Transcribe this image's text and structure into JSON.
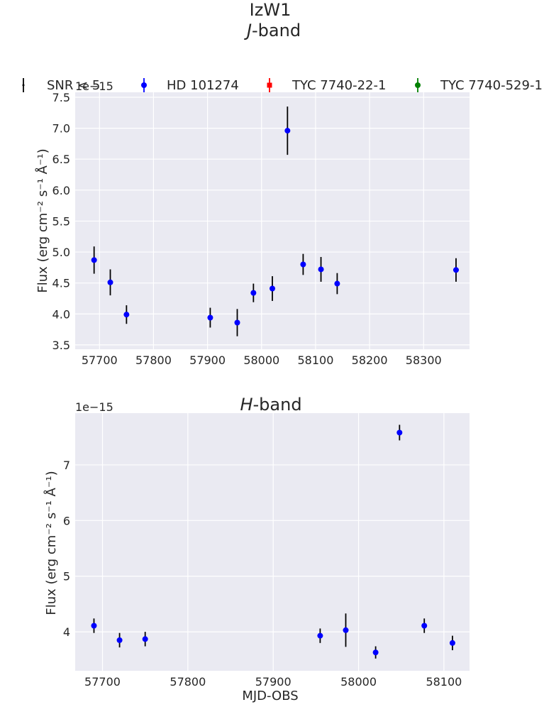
{
  "figure": {
    "suptitle_line1": "IzW1",
    "suptitle_line2_italic": "J",
    "suptitle_line2_rest": "-band",
    "legend": [
      {
        "label": "SNR < 5",
        "marker": "tick",
        "color": "#000000"
      },
      {
        "label": "HD 101274",
        "marker": "circle",
        "color": "#0000ff"
      },
      {
        "label": "TYC 7740-22-1",
        "marker": "square",
        "color": "#ff0000"
      },
      {
        "label": "TYC 7740-529-1",
        "marker": "circle",
        "color": "#008000"
      }
    ]
  },
  "chart_data": [
    {
      "type": "scatter",
      "title": "",
      "xlabel": "",
      "ylabel": "Flux (erg cm⁻² s⁻¹ Å⁻¹)",
      "offset_text": "1e−15",
      "xlim": [
        57655,
        58385
      ],
      "ylim": [
        3.43,
        7.58
      ],
      "xticks": [
        57700,
        57800,
        57900,
        58000,
        58100,
        58200,
        58300
      ],
      "yticks": [
        3.5,
        4.0,
        4.5,
        5.0,
        5.5,
        6.0,
        6.5,
        7.0,
        7.5
      ],
      "ytick_labels": [
        "3.5",
        "4.0",
        "4.5",
        "5.0",
        "5.5",
        "6.0",
        "6.5",
        "7.0",
        "7.5"
      ],
      "grid": true,
      "series": [
        {
          "name": "HD 101274",
          "color": "#0000ff",
          "x": [
            57690,
            57720,
            57750,
            57905,
            57955,
            57985,
            58020,
            58048,
            58077,
            58110,
            58140,
            58360
          ],
          "y": [
            4.87,
            4.51,
            3.99,
            3.94,
            3.86,
            4.34,
            4.41,
            6.96,
            4.8,
            4.72,
            4.49,
            4.71
          ],
          "yerr": [
            0.22,
            0.21,
            0.15,
            0.16,
            0.22,
            0.15,
            0.2,
            0.39,
            0.17,
            0.2,
            0.17,
            0.19
          ]
        }
      ]
    },
    {
      "type": "scatter",
      "title_italic": "H",
      "title_rest": "-band",
      "xlabel": "MJD-OBS",
      "ylabel": "Flux (erg cm⁻² s⁻¹ Å⁻¹)",
      "offset_text": "1e−15",
      "xlim": [
        57668,
        58130
      ],
      "ylim": [
        3.3,
        7.93
      ],
      "xticks": [
        57700,
        57800,
        57900,
        58000,
        58100
      ],
      "yticks": [
        4,
        5,
        6,
        7
      ],
      "ytick_labels": [
        "4",
        "5",
        "6",
        "7"
      ],
      "grid": true,
      "series": [
        {
          "name": "HD 101274",
          "color": "#0000ff",
          "x": [
            57690,
            57720,
            57750,
            57955,
            57985,
            58020,
            58048,
            58077,
            58110
          ],
          "y": [
            4.11,
            3.85,
            3.87,
            3.93,
            4.03,
            3.63,
            7.58,
            4.11,
            3.8
          ],
          "yerr": [
            0.13,
            0.13,
            0.13,
            0.13,
            0.3,
            0.11,
            0.14,
            0.13,
            0.13
          ]
        }
      ]
    }
  ]
}
